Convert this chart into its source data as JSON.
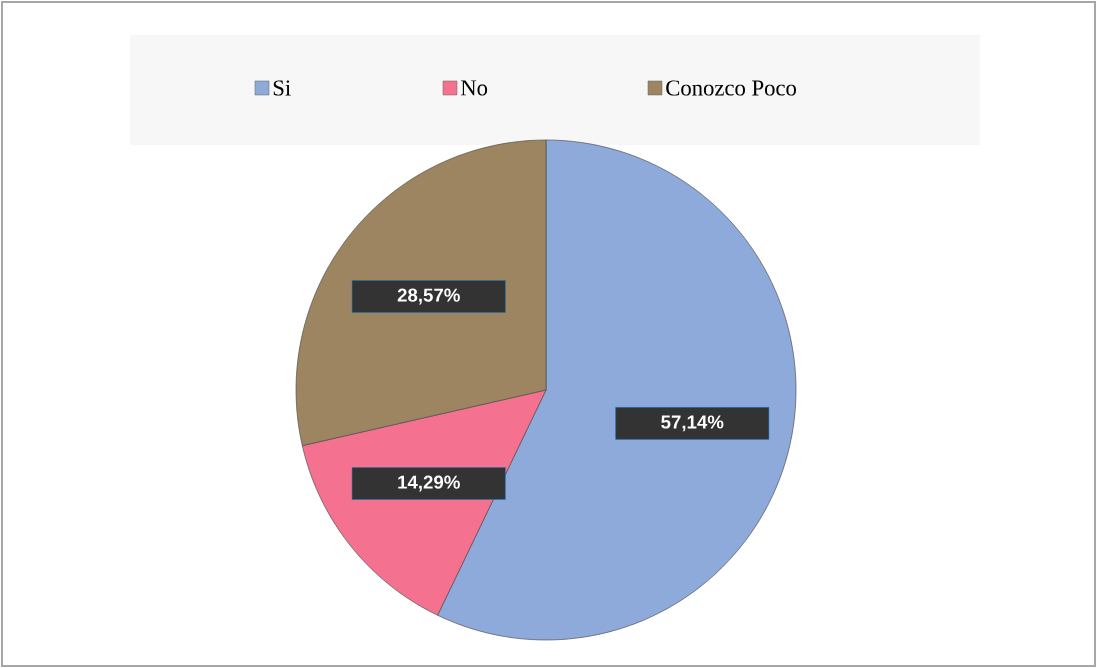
{
  "chart_data": {
    "type": "pie",
    "categories": [
      "Si",
      "No",
      "Conozco Poco"
    ],
    "values": [
      57.14,
      14.29,
      28.57
    ],
    "colors": [
      "#8eaadb",
      "#f4728f",
      "#9c8560"
    ],
    "value_labels": [
      "57,14%",
      "14,29%",
      "28,57%"
    ],
    "legend": "top"
  }
}
